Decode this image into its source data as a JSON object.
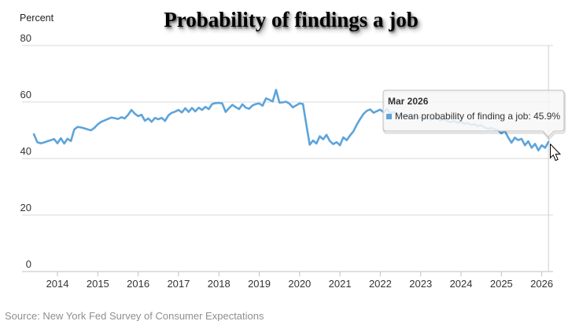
{
  "title": "Probability of findings a job",
  "y_axis_unit_label": "Percent",
  "source": "Source: New York Fed Survey of Consumer Expectations",
  "tooltip": {
    "header": "Mar 2026",
    "body": "Mean probability of finding a job: 45.9%"
  },
  "colors": {
    "line": "#5da4da",
    "grid": "#d8d8d8",
    "axis": "#c0c0c0",
    "crosshair": "#cfcfcf",
    "label": "#333333",
    "tooltip_bg": "rgba(247,247,247,0.85)",
    "tooltip_border": "#bdbdbd"
  },
  "chart_data": {
    "type": "line",
    "series_name": "Mean probability of finding a job",
    "title": "Probability of findings a job",
    "ylabel": "Percent",
    "ylim": [
      0,
      80
    ],
    "y_ticks": [
      80,
      60,
      40,
      20,
      0
    ],
    "x_tick_labels": [
      "2014",
      "2015",
      "2016",
      "2017",
      "2018",
      "2019",
      "2020",
      "2021",
      "2022",
      "2023",
      "2024",
      "2025",
      "2026"
    ],
    "x_start": "2013-06",
    "x_end": "2026-03",
    "frequency": "monthly",
    "hover_point": {
      "x": "Mar 2026",
      "y": 45.9
    },
    "values": [
      48.6,
      45.8,
      45.4,
      45.7,
      46.1,
      46.5,
      46.9,
      45.4,
      47.2,
      45.3,
      47.0,
      46.2,
      50.3,
      51.2,
      51.0,
      50.7,
      50.3,
      50.0,
      50.9,
      52.1,
      53.0,
      53.5,
      54.0,
      54.5,
      54.3,
      54.0,
      54.6,
      54.2,
      55.5,
      57.2,
      55.9,
      55.0,
      55.5,
      53.4,
      54.2,
      53.0,
      54.4,
      53.9,
      54.4,
      53.3,
      55.3,
      56.2,
      56.6,
      57.2,
      56.3,
      57.8,
      56.5,
      57.9,
      56.7,
      58.0,
      57.2,
      58.3,
      57.5,
      59.3,
      59.6,
      59.7,
      59.5,
      56.5,
      57.8,
      59.0,
      58.2,
      57.5,
      59.2,
      58.0,
      57.6,
      58.8,
      59.3,
      59.5,
      58.7,
      61.3,
      60.8,
      60.2,
      64.3,
      59.8,
      59.9,
      60.1,
      59.4,
      58.1,
      58.8,
      59.5,
      59.3,
      52.0,
      44.9,
      46.4,
      45.3,
      47.9,
      46.8,
      48.4,
      46.2,
      45.1,
      45.8,
      44.7,
      47.5,
      46.5,
      48.2,
      49.6,
      52.0,
      54.0,
      55.8,
      56.9,
      57.4,
      56.2,
      56.8,
      57.3,
      56.3,
      57.5,
      56.0,
      56.5,
      55.2,
      55.8,
      54.8,
      55.4,
      54.5,
      54.9,
      54.3,
      54.7,
      54.1,
      54.5,
      53.8,
      54.3,
      54.0,
      53.5,
      53.9,
      53.2,
      52.9,
      53.3,
      52.7,
      52.9,
      52.3,
      52.6,
      51.9,
      52.2,
      51.5,
      51.8,
      51.0,
      50.5,
      50.8,
      50.3,
      50.0,
      48.9,
      49.8,
      47.5,
      45.6,
      47.4,
      46.5,
      47.0,
      44.7,
      46.1,
      43.8,
      45.2,
      42.9,
      44.7,
      43.8,
      45.9
    ]
  }
}
